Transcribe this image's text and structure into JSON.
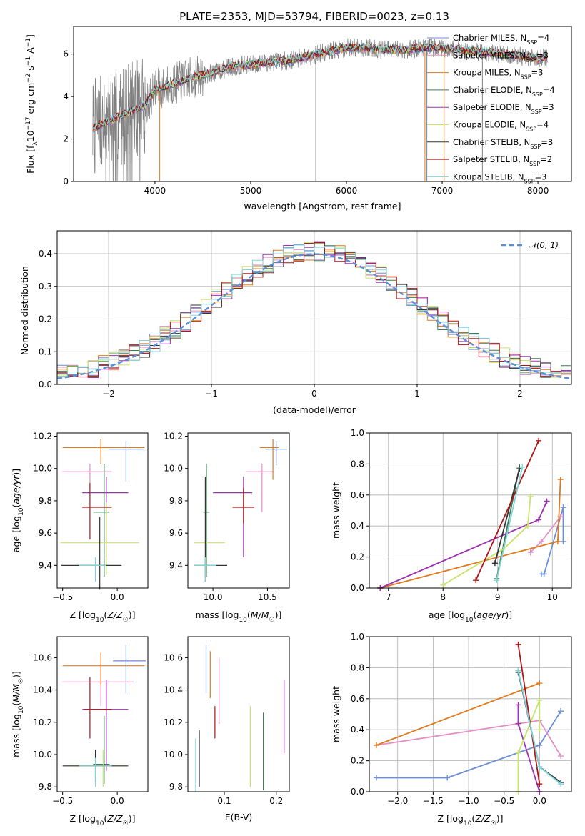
{
  "figure_title": "PLATE=2353, MJD=53794, FIBERID=0023, z=0.13",
  "colors": {
    "chabrier_miles": "#6b8ed6",
    "salpeter_miles": "#e48fc3",
    "kroupa_miles": "#e07a1f",
    "chabrier_elodie": "#3f7d54",
    "salpeter_elodie": "#9b33b0",
    "kroupa_elodie": "#c7e36a",
    "chabrier_stelib": "#333333",
    "salpeter_stelib": "#b01515",
    "kroupa_stelib": "#7fd4d9",
    "data": "#808080"
  },
  "chart_data": [
    {
      "id": "spectrum",
      "type": "line",
      "title": "PLATE=2353, MJD=53794, FIBERID=0023, z=0.13",
      "xlabel": "wavelength [Angstrom, rest frame]",
      "ylabel": "Flux [f_λ 10^-17 erg cm^-2 s^-1 A^-1]",
      "xlim": [
        3150,
        8350
      ],
      "ylim": [
        0,
        7.3
      ],
      "xticks": [
        4000,
        5000,
        6000,
        7000,
        8000
      ],
      "yticks": [
        0,
        2,
        4,
        6
      ],
      "legend_position": "upper right",
      "legend": [
        "Chabrier MILES, N_SSP=4",
        "Salpeter MILES, N_SSP=3",
        "Kroupa MILES, N_SSP=3",
        "Chabrier ELODIE, N_SSP=4",
        "Salpeter ELODIE, N_SSP=3",
        "Kroupa ELODIE, N_SSP=4",
        "Chabrier STELIB, N_SSP=3",
        "Salpeter STELIB, N_SSP=2",
        "Kroupa STELIB, N_SSP=3"
      ],
      "continuum": {
        "x": [
          3350,
          3500,
          3700,
          3900,
          4000,
          4200,
          4400,
          4600,
          4800,
          5000,
          5200,
          5400,
          5600,
          5800,
          6000,
          6200,
          6400,
          6600,
          6800,
          7000,
          7200,
          7400,
          7600,
          7800,
          8000,
          8100
        ],
        "y": [
          2.5,
          2.8,
          3.2,
          3.6,
          4.3,
          4.6,
          4.9,
          5.1,
          5.4,
          5.5,
          5.6,
          5.7,
          5.9,
          6.1,
          6.3,
          6.3,
          6.2,
          6.2,
          6.3,
          6.3,
          6.2,
          6.1,
          6.0,
          5.9,
          5.8,
          5.8
        ]
      }
    },
    {
      "id": "residuals",
      "type": "histogram",
      "xlabel": "(data-model)/error",
      "ylabel": "Normed distribution",
      "xlim": [
        -2.5,
        2.5
      ],
      "ylim": [
        0,
        0.47
      ],
      "xticks": [
        -2,
        -1,
        0,
        1,
        2
      ],
      "yticks": [
        0.0,
        0.1,
        0.2,
        0.3,
        0.4
      ],
      "grid": true,
      "legend": [
        "𝒩(0, 1)"
      ],
      "legend_position": "upper right",
      "gaussian": {
        "mean": 0,
        "sigma": 1
      },
      "bin_width": 0.1
    },
    {
      "id": "age_vs_Z",
      "type": "errorbar",
      "xlabel": "Z [log10(Z/Z☉)]",
      "ylabel": "age [log10(age/yr)]",
      "xlim": [
        -0.55,
        0.28
      ],
      "ylim": [
        9.26,
        10.22
      ],
      "xticks": [
        -0.5,
        0.0
      ],
      "yticks": [
        9.4,
        9.6,
        9.8,
        10.0,
        10.2
      ],
      "points": [
        {
          "model": "chabrier_miles",
          "x": 0.08,
          "xerr": [
            0.16,
            0.16
          ],
          "y": 10.12,
          "yerr": [
            0.2,
            0.05
          ]
        },
        {
          "model": "salpeter_miles",
          "x": -0.25,
          "xerr": [
            0.25,
            0.2
          ],
          "y": 9.98,
          "yerr": [
            0.1,
            0.05
          ]
        },
        {
          "model": "kroupa_miles",
          "x": -0.15,
          "xerr": [
            0.35,
            0.4
          ],
          "y": 10.13,
          "yerr": [
            0.1,
            0.05
          ]
        },
        {
          "model": "chabrier_elodie",
          "x": -0.12,
          "xerr": [
            0.1,
            0.05
          ],
          "y": 9.73,
          "yerr": [
            0.4,
            0.3
          ]
        },
        {
          "model": "salpeter_elodie",
          "x": -0.1,
          "xerr": [
            0.22,
            0.2
          ],
          "y": 9.85,
          "yerr": [
            0.4,
            0.1
          ]
        },
        {
          "model": "kroupa_elodie",
          "x": -0.1,
          "xerr": [
            0.42,
            0.3
          ],
          "y": 9.54,
          "yerr": [
            0.2,
            0.25
          ]
        },
        {
          "model": "chabrier_stelib",
          "x": -0.16,
          "xerr": [
            0.35,
            0.2
          ],
          "y": 9.4,
          "yerr": [
            0.15,
            0.3
          ]
        },
        {
          "model": "salpeter_stelib",
          "x": -0.25,
          "xerr": [
            0.07,
            0.2
          ],
          "y": 9.76,
          "yerr": [
            0.2,
            0.15
          ]
        },
        {
          "model": "kroupa_stelib",
          "x": -0.2,
          "xerr": [
            0.15,
            0.1
          ],
          "y": 9.4,
          "yerr": [
            0.1,
            0.05
          ]
        }
      ]
    },
    {
      "id": "age_vs_mass",
      "type": "errorbar",
      "xlabel": "mass [log10(M/M☉)]",
      "ylabel": "",
      "xlim": [
        9.77,
        10.7
      ],
      "ylim": [
        9.26,
        10.22
      ],
      "xticks": [
        10.0,
        10.5
      ],
      "yticks": [
        9.4,
        9.6,
        9.8,
        10.0,
        10.2
      ],
      "points": [
        {
          "model": "chabrier_miles",
          "x": 10.58,
          "xerr": [
            0.1,
            0.1
          ],
          "y": 10.12,
          "yerr": [
            0.1,
            0.05
          ]
        },
        {
          "model": "salpeter_miles",
          "x": 10.45,
          "xerr": [
            0.15,
            0.1
          ],
          "y": 9.98,
          "yerr": [
            0.25,
            0.05
          ]
        },
        {
          "model": "kroupa_miles",
          "x": 10.55,
          "xerr": [
            0.12,
            0.05
          ],
          "y": 10.13,
          "yerr": [
            0.2,
            0.05
          ]
        },
        {
          "model": "chabrier_elodie",
          "x": 9.94,
          "xerr": [
            0.03,
            0.03
          ],
          "y": 9.73,
          "yerr": [
            0.4,
            0.3
          ]
        },
        {
          "model": "salpeter_elodie",
          "x": 10.28,
          "xerr": [
            0.28,
            0.08
          ],
          "y": 9.85,
          "yerr": [
            0.4,
            0.1
          ]
        },
        {
          "model": "kroupa_elodie",
          "x": 9.93,
          "xerr": [
            0.1,
            0.18
          ],
          "y": 9.54,
          "yerr": [
            0.2,
            0.2
          ]
        },
        {
          "model": "chabrier_stelib",
          "x": 9.93,
          "xerr": [
            0.1,
            0.2
          ],
          "y": 9.4,
          "yerr": [
            0.1,
            0.55
          ]
        },
        {
          "model": "salpeter_stelib",
          "x": 10.28,
          "xerr": [
            0.1,
            0.1
          ],
          "y": 9.76,
          "yerr": [
            0.1,
            0.12
          ]
        },
        {
          "model": "kroupa_stelib",
          "x": 9.93,
          "xerr": [
            0.1,
            0.1
          ],
          "y": 9.4,
          "yerr": [
            0.1,
            0.05
          ]
        }
      ]
    },
    {
      "id": "massweight_vs_age",
      "type": "line",
      "xlabel": "age [log10(age/yr)]",
      "ylabel": "mass weight",
      "xlim": [
        6.65,
        10.35
      ],
      "ylim": [
        0,
        1.0
      ],
      "xticks": [
        7,
        8,
        9,
        10
      ],
      "yticks": [
        0.0,
        0.2,
        0.4,
        0.6,
        0.8,
        1.0
      ],
      "grid": true,
      "series": [
        {
          "model": "chabrier_miles",
          "x": [
            9.8,
            9.85,
            10.2,
            10.2
          ],
          "y": [
            0.09,
            0.09,
            0.52,
            0.3
          ]
        },
        {
          "model": "salpeter_miles",
          "x": [
            9.6,
            9.8,
            10.15
          ],
          "y": [
            0.23,
            0.3,
            0.46
          ]
        },
        {
          "model": "kroupa_miles",
          "x": [
            6.85,
            10.1,
            10.15
          ],
          "y": [
            0.0,
            0.3,
            0.7
          ]
        },
        {
          "model": "chabrier_elodie",
          "x": [
            8.98,
            9.4
          ],
          "y": [
            0.06,
            0.78
          ]
        },
        {
          "model": "salpeter_elodie",
          "x": [
            6.85,
            9.75,
            9.9
          ],
          "y": [
            0.0,
            0.44,
            0.56
          ]
        },
        {
          "model": "kroupa_elodie",
          "x": [
            8.0,
            9.1,
            9.55,
            9.6
          ],
          "y": [
            0.02,
            0.25,
            0.4,
            0.59
          ]
        },
        {
          "model": "chabrier_stelib",
          "x": [
            8.95,
            9.4
          ],
          "y": [
            0.16,
            0.77
          ]
        },
        {
          "model": "salpeter_stelib",
          "x": [
            8.6,
            9.75
          ],
          "y": [
            0.05,
            0.95
          ]
        },
        {
          "model": "kroupa_stelib",
          "x": [
            8.98,
            9.45
          ],
          "y": [
            0.05,
            0.78
          ]
        }
      ]
    },
    {
      "id": "mass_vs_Z",
      "type": "errorbar",
      "xlabel": "Z [log10(Z/Z☉)]",
      "ylabel": "mass [log10(M/M☉)]",
      "xlim": [
        -0.55,
        0.28
      ],
      "ylim": [
        9.77,
        10.73
      ],
      "xticks": [
        -0.5,
        0.0
      ],
      "yticks": [
        9.8,
        10.0,
        10.2,
        10.4,
        10.6
      ],
      "points": [
        {
          "model": "chabrier_miles",
          "x": 0.08,
          "xerr": [
            0.12,
            0.18
          ],
          "y": 10.58,
          "yerr": [
            0.2,
            0.1
          ]
        },
        {
          "model": "salpeter_miles",
          "x": -0.15,
          "xerr": [
            0.35,
            0.3
          ],
          "y": 10.45,
          "yerr": [
            0.15,
            0.1
          ]
        },
        {
          "model": "kroupa_miles",
          "x": -0.15,
          "xerr": [
            0.35,
            0.4
          ],
          "y": 10.55,
          "yerr": [
            0.12,
            0.08
          ]
        },
        {
          "model": "chabrier_elodie",
          "x": -0.12,
          "xerr": [
            0.1,
            0.05
          ],
          "y": 9.94,
          "yerr": [
            0.12,
            0.3
          ]
        },
        {
          "model": "salpeter_elodie",
          "x": -0.1,
          "xerr": [
            0.22,
            0.2
          ],
          "y": 10.28,
          "yerr": [
            0.38,
            0.18
          ]
        },
        {
          "model": "kroupa_elodie",
          "x": -0.13,
          "xerr": [
            0.35,
            0.2
          ],
          "y": 9.93,
          "yerr": [
            0.13,
            0.1
          ]
        },
        {
          "model": "chabrier_stelib",
          "x": -0.2,
          "xerr": [
            0.3,
            0.3
          ],
          "y": 9.93,
          "yerr": [
            0.1,
            0.1
          ]
        },
        {
          "model": "salpeter_stelib",
          "x": -0.25,
          "xerr": [
            0.05,
            0.2
          ],
          "y": 10.28,
          "yerr": [
            0.18,
            0.2
          ]
        },
        {
          "model": "kroupa_stelib",
          "x": -0.2,
          "xerr": [
            0.15,
            0.15
          ],
          "y": 9.93,
          "yerr": [
            0.13,
            0.05
          ]
        }
      ]
    },
    {
      "id": "mass_vs_ebv",
      "type": "errorbar",
      "xlabel": "E(B-V)",
      "ylabel": "",
      "xlim": [
        0.03,
        0.225
      ],
      "ylim": [
        9.77,
        10.73
      ],
      "xticks": [
        0.1,
        0.2
      ],
      "yticks": [
        9.8,
        10.0,
        10.2,
        10.4,
        10.6
      ],
      "points": [
        {
          "model": "chabrier_miles",
          "x": 0.065,
          "yerr": [
            10.38,
            10.68
          ]
        },
        {
          "model": "salpeter_miles",
          "x": 0.09,
          "yerr": [
            10.19,
            10.6
          ]
        },
        {
          "model": "kroupa_miles",
          "x": 0.073,
          "yerr": [
            10.35,
            10.64
          ]
        },
        {
          "model": "chabrier_elodie",
          "x": 0.175,
          "yerr": [
            9.78,
            10.26
          ]
        },
        {
          "model": "salpeter_elodie",
          "x": 0.215,
          "yerr": [
            10.01,
            10.46
          ]
        },
        {
          "model": "kroupa_elodie",
          "x": 0.15,
          "yerr": [
            9.8,
            10.3
          ]
        },
        {
          "model": "chabrier_stelib",
          "x": 0.052,
          "yerr": [
            9.8,
            10.15
          ]
        },
        {
          "model": "salpeter_stelib",
          "x": 0.082,
          "yerr": [
            10.1,
            10.3
          ]
        },
        {
          "model": "kroupa_stelib",
          "x": 0.045,
          "yerr": [
            9.77,
            10.1
          ]
        }
      ]
    },
    {
      "id": "massweight_vs_Z",
      "type": "line",
      "xlabel": "Z [log10(Z/Z☉)]",
      "ylabel": "mass weight",
      "xlim": [
        -2.4,
        0.45
      ],
      "ylim": [
        0,
        1.0
      ],
      "xticks": [
        -2.0,
        -1.5,
        -1.0,
        -0.5,
        0.0
      ],
      "yticks": [
        0.0,
        0.2,
        0.4,
        0.6,
        0.8,
        1.0
      ],
      "grid": true,
      "series": [
        {
          "model": "chabrier_miles",
          "x": [
            -2.3,
            -1.3,
            0.0,
            0.3
          ],
          "y": [
            0.09,
            0.09,
            0.3,
            0.52
          ]
        },
        {
          "model": "salpeter_miles",
          "x": [
            -2.3,
            0.0,
            0.3
          ],
          "y": [
            0.3,
            0.46,
            0.23
          ]
        },
        {
          "model": "kroupa_miles",
          "x": [
            -2.3,
            0.0
          ],
          "y": [
            0.3,
            0.7
          ]
        },
        {
          "model": "chabrier_elodie",
          "x": [
            -0.3,
            0.0,
            0.3
          ],
          "y": [
            0.78,
            0.16,
            0.06
          ]
        },
        {
          "model": "salpeter_elodie",
          "x": [
            -0.3,
            -0.3,
            0.0
          ],
          "y": [
            0.56,
            0.44,
            0.0
          ]
        },
        {
          "model": "kroupa_elodie",
          "x": [
            -0.3,
            -0.3,
            0.0,
            0.0
          ],
          "y": [
            0.0,
            0.25,
            0.59,
            0.4
          ]
        },
        {
          "model": "chabrier_stelib",
          "x": [
            -0.3,
            0.0,
            0.3
          ],
          "y": [
            0.77,
            0.16,
            0.06
          ]
        },
        {
          "model": "salpeter_stelib",
          "x": [
            -0.3,
            0.0
          ],
          "y": [
            0.95,
            0.05
          ]
        },
        {
          "model": "kroupa_stelib",
          "x": [
            -0.3,
            0.0,
            0.3
          ],
          "y": [
            0.78,
            0.16,
            0.05
          ]
        }
      ]
    }
  ]
}
